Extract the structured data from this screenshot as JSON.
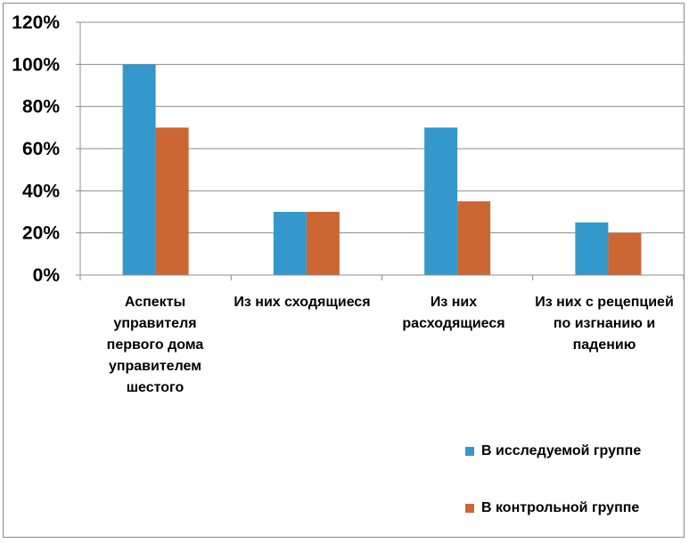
{
  "chart_data": {
    "type": "bar",
    "categories": [
      "Аспекты управителя первого дома управителем шестого",
      "Из них сходящиеся",
      "Из них расходящиеся",
      "Из них с рецепцией по изгнанию и падению"
    ],
    "series": [
      {
        "name": "В исследуемой группе",
        "values": [
          100,
          30,
          70,
          25
        ],
        "color": "#3399cc"
      },
      {
        "name": "В контрольной группе",
        "values": [
          70,
          30,
          35,
          20
        ],
        "color": "#cc6633"
      }
    ],
    "yticks": [
      "0%",
      "20%",
      "40%",
      "60%",
      "80%",
      "100%",
      "120%"
    ],
    "ylim": [
      0,
      120
    ],
    "title": "",
    "xlabel": "",
    "ylabel": "",
    "grid": true,
    "legend_position": "bottom-right"
  }
}
